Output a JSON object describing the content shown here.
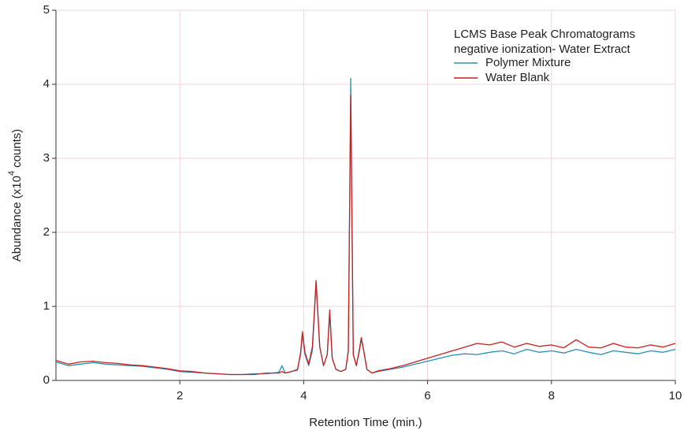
{
  "chart_data": {
    "type": "line",
    "legend_title": [
      "LCMS Base Peak Chromatograms",
      "negative ionization- Water Extract"
    ],
    "xlabel": "Retention Time (min.)",
    "ylabel": [
      "Abundance (x10",
      "4",
      "counts)"
    ],
    "xlim": [
      0,
      10
    ],
    "ylim": [
      0,
      5
    ],
    "xticks": [
      2,
      4,
      6,
      8,
      10
    ],
    "yticks": [
      0,
      1,
      2,
      3,
      4,
      5
    ],
    "grid": true,
    "legend": "upper right",
    "x": [
      0,
      0.2,
      0.4,
      0.6,
      0.8,
      1,
      1.2,
      1.4,
      1.6,
      1.8,
      2,
      2.2,
      2.4,
      2.6,
      2.8,
      3,
      3.2,
      3.4,
      3.6,
      3.65,
      3.7,
      3.8,
      3.9,
      3.95,
      3.98,
      4.02,
      4.08,
      4.14,
      4.2,
      4.26,
      4.32,
      4.38,
      4.42,
      4.46,
      4.52,
      4.6,
      4.68,
      4.72,
      4.76,
      4.8,
      4.85,
      4.9,
      4.93,
      4.97,
      5.02,
      5.1,
      5.2,
      5.4,
      5.6,
      5.8,
      6,
      6.2,
      6.4,
      6.6,
      6.8,
      7,
      7.2,
      7.4,
      7.6,
      7.8,
      8,
      8.2,
      8.4,
      8.6,
      8.8,
      9,
      9.2,
      9.4,
      9.6,
      9.8,
      10
    ],
    "series": [
      {
        "name": "Polymer Mixture",
        "color": "#2a8fb5",
        "values": [
          0.25,
          0.2,
          0.22,
          0.24,
          0.22,
          0.21,
          0.2,
          0.19,
          0.17,
          0.15,
          0.12,
          0.11,
          0.1,
          0.09,
          0.08,
          0.08,
          0.09,
          0.09,
          0.11,
          0.2,
          0.1,
          0.12,
          0.15,
          0.35,
          0.62,
          0.35,
          0.2,
          0.4,
          1.3,
          0.45,
          0.2,
          0.35,
          0.9,
          0.3,
          0.15,
          0.12,
          0.15,
          0.4,
          4.08,
          0.35,
          0.2,
          0.4,
          0.55,
          0.4,
          0.15,
          0.1,
          0.12,
          0.15,
          0.18,
          0.22,
          0.26,
          0.3,
          0.34,
          0.36,
          0.35,
          0.38,
          0.4,
          0.36,
          0.42,
          0.38,
          0.4,
          0.37,
          0.42,
          0.38,
          0.35,
          0.4,
          0.38,
          0.36,
          0.4,
          0.38,
          0.42
        ]
      },
      {
        "name": "Water Blank",
        "color": "#c8201f",
        "values": [
          0.27,
          0.22,
          0.25,
          0.26,
          0.24,
          0.23,
          0.21,
          0.2,
          0.18,
          0.16,
          0.13,
          0.12,
          0.1,
          0.09,
          0.08,
          0.08,
          0.08,
          0.1,
          0.1,
          0.12,
          0.1,
          0.12,
          0.14,
          0.38,
          0.66,
          0.38,
          0.22,
          0.45,
          1.35,
          0.45,
          0.2,
          0.35,
          0.95,
          0.3,
          0.15,
          0.12,
          0.15,
          0.4,
          3.85,
          0.35,
          0.2,
          0.42,
          0.58,
          0.4,
          0.15,
          0.1,
          0.13,
          0.16,
          0.2,
          0.25,
          0.3,
          0.35,
          0.4,
          0.45,
          0.5,
          0.48,
          0.52,
          0.45,
          0.5,
          0.46,
          0.48,
          0.44,
          0.55,
          0.45,
          0.44,
          0.5,
          0.45,
          0.44,
          0.48,
          0.45,
          0.5
        ]
      }
    ]
  }
}
